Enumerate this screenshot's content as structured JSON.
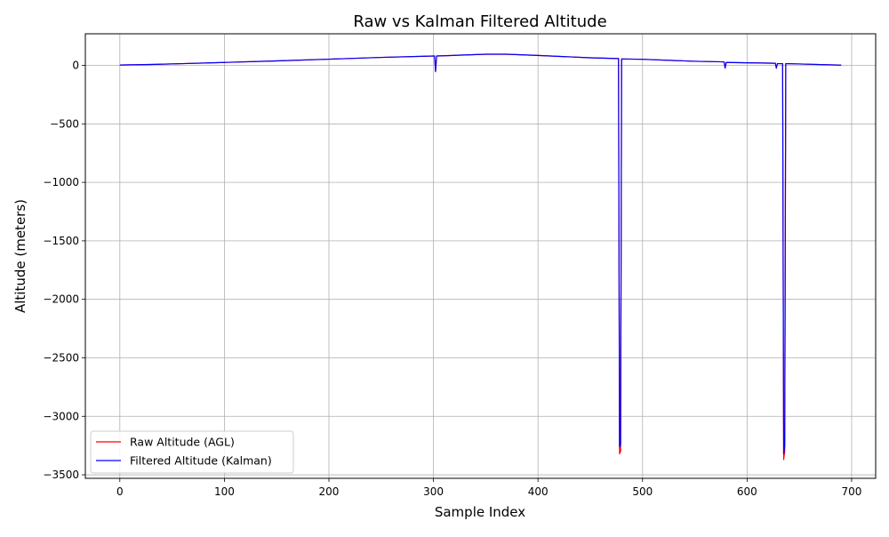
{
  "chart_data": {
    "type": "line",
    "title": "Raw vs Kalman Filtered Altitude",
    "xlabel": "Sample Index",
    "ylabel": "Altitude (meters)",
    "xlim": [
      -33,
      723
    ],
    "ylim": [
      -3530,
      270
    ],
    "x_ticks": [
      0,
      100,
      200,
      300,
      400,
      500,
      600,
      700
    ],
    "y_ticks": [
      0,
      -500,
      -1000,
      -1500,
      -2000,
      -2500,
      -3000,
      -3500
    ],
    "grid": true,
    "legend_position": "lower-left",
    "series": [
      {
        "name": "Raw Altitude (AGL)",
        "color": "#ff0000",
        "points": [
          [
            0,
            3
          ],
          [
            30,
            8
          ],
          [
            60,
            15
          ],
          [
            100,
            25
          ],
          [
            150,
            38
          ],
          [
            200,
            53
          ],
          [
            250,
            68
          ],
          [
            300,
            80
          ],
          [
            301,
            80
          ],
          [
            302,
            -50
          ],
          [
            303,
            80
          ],
          [
            350,
            95
          ],
          [
            370,
            95
          ],
          [
            400,
            85
          ],
          [
            450,
            65
          ],
          [
            477,
            58
          ],
          [
            478,
            -3320
          ],
          [
            479,
            -3300
          ],
          [
            480,
            55
          ],
          [
            500,
            52
          ],
          [
            550,
            35
          ],
          [
            577,
            30
          ],
          [
            578,
            30
          ],
          [
            579,
            -20
          ],
          [
            580,
            25
          ],
          [
            600,
            22
          ],
          [
            627,
            18
          ],
          [
            628,
            -20
          ],
          [
            629,
            15
          ],
          [
            634,
            15
          ],
          [
            635,
            -3370
          ],
          [
            636,
            -3300
          ],
          [
            637,
            15
          ],
          [
            650,
            12
          ],
          [
            690,
            2
          ]
        ]
      },
      {
        "name": "Filtered Altitude (Kalman)",
        "color": "#0000ff",
        "points": [
          [
            0,
            3
          ],
          [
            30,
            8
          ],
          [
            60,
            15
          ],
          [
            100,
            25
          ],
          [
            150,
            38
          ],
          [
            200,
            53
          ],
          [
            250,
            68
          ],
          [
            300,
            80
          ],
          [
            301,
            80
          ],
          [
            302,
            -55
          ],
          [
            303,
            80
          ],
          [
            350,
            95
          ],
          [
            370,
            95
          ],
          [
            400,
            85
          ],
          [
            450,
            65
          ],
          [
            477,
            58
          ],
          [
            478,
            -3260
          ],
          [
            479,
            -3240
          ],
          [
            480,
            55
          ],
          [
            500,
            52
          ],
          [
            550,
            35
          ],
          [
            577,
            30
          ],
          [
            578,
            30
          ],
          [
            579,
            -25
          ],
          [
            580,
            25
          ],
          [
            600,
            22
          ],
          [
            627,
            18
          ],
          [
            628,
            -25
          ],
          [
            629,
            15
          ],
          [
            634,
            15
          ],
          [
            635,
            -3320
          ],
          [
            636,
            -3250
          ],
          [
            637,
            15
          ],
          [
            650,
            12
          ],
          [
            690,
            2
          ]
        ]
      }
    ]
  }
}
